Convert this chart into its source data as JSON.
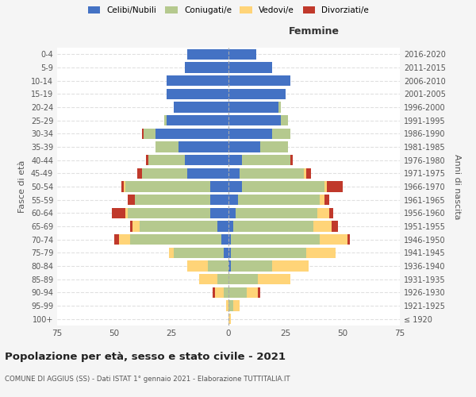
{
  "age_groups": [
    "100+",
    "95-99",
    "90-94",
    "85-89",
    "80-84",
    "75-79",
    "70-74",
    "65-69",
    "60-64",
    "55-59",
    "50-54",
    "45-49",
    "40-44",
    "35-39",
    "30-34",
    "25-29",
    "20-24",
    "15-19",
    "10-14",
    "5-9",
    "0-4"
  ],
  "birth_years": [
    "≤ 1920",
    "1921-1925",
    "1926-1930",
    "1931-1935",
    "1936-1940",
    "1941-1945",
    "1946-1950",
    "1951-1955",
    "1956-1960",
    "1961-1965",
    "1966-1970",
    "1971-1975",
    "1976-1980",
    "1981-1985",
    "1986-1990",
    "1991-1995",
    "1996-2000",
    "2001-2005",
    "2006-2010",
    "2011-2015",
    "2016-2020"
  ],
  "males": {
    "celibi": [
      0,
      0,
      0,
      0,
      0,
      2,
      3,
      5,
      8,
      8,
      8,
      18,
      19,
      22,
      32,
      27,
      24,
      27,
      27,
      19,
      18
    ],
    "coniugati": [
      0,
      0,
      2,
      5,
      9,
      22,
      40,
      34,
      36,
      33,
      37,
      20,
      16,
      10,
      5,
      1,
      0,
      0,
      0,
      0,
      0
    ],
    "vedovi": [
      0,
      1,
      4,
      8,
      9,
      2,
      5,
      3,
      1,
      0,
      1,
      0,
      0,
      0,
      0,
      0,
      0,
      0,
      0,
      0,
      0
    ],
    "divorziati": [
      0,
      0,
      1,
      0,
      0,
      0,
      2,
      1,
      6,
      3,
      1,
      2,
      1,
      0,
      1,
      0,
      0,
      0,
      0,
      0,
      0
    ]
  },
  "females": {
    "nubili": [
      0,
      0,
      0,
      0,
      1,
      1,
      1,
      2,
      3,
      4,
      6,
      5,
      6,
      14,
      19,
      23,
      22,
      25,
      27,
      19,
      12
    ],
    "coniugate": [
      0,
      2,
      8,
      13,
      18,
      33,
      39,
      35,
      36,
      36,
      36,
      28,
      21,
      12,
      8,
      3,
      1,
      0,
      0,
      0,
      0
    ],
    "vedove": [
      1,
      3,
      5,
      14,
      16,
      13,
      12,
      8,
      5,
      2,
      1,
      1,
      0,
      0,
      0,
      0,
      0,
      0,
      0,
      0,
      0
    ],
    "divorziate": [
      0,
      0,
      1,
      0,
      0,
      0,
      1,
      3,
      2,
      2,
      7,
      2,
      1,
      0,
      0,
      0,
      0,
      0,
      0,
      0,
      0
    ]
  },
  "colors": {
    "celibi": "#4472c4",
    "coniugati": "#b5c98e",
    "vedovi": "#ffd478",
    "divorziati": "#c0392b"
  },
  "xlim": 75,
  "title": "Popolazione per età, sesso e stato civile - 2021",
  "subtitle": "COMUNE DI AGGIUS (SS) - Dati ISTAT 1° gennaio 2021 - Elaborazione TUTTITALIA.IT",
  "xlabel_right": "Femmine",
  "ylabel_left": "Fasce di età",
  "ylabel_right": "Anni di nascita",
  "bg_color": "#f5f5f5",
  "plot_bg_color": "#ffffff",
  "legend_labels": [
    "Celibi/Nubili",
    "Coniugati/e",
    "Vedovi/e",
    "Divorziati/e"
  ]
}
